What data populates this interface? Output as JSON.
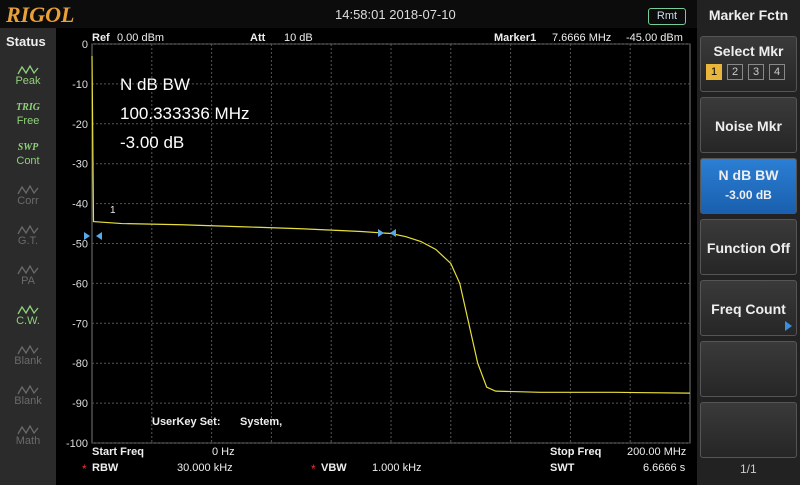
{
  "header": {
    "logo": "RIGOL",
    "datetime": "14:58:01 2018-07-10",
    "remote": "Rmt"
  },
  "status": {
    "title": "Status",
    "items": [
      {
        "label": "Peak",
        "active": true
      },
      {
        "tag": "TRIG",
        "label": "Free",
        "active": true
      },
      {
        "tag": "SWP",
        "label": "Cont",
        "active": true
      },
      {
        "label": "Corr",
        "active": false
      },
      {
        "label": "G.T.",
        "active": false
      },
      {
        "label": "PA",
        "active": false
      },
      {
        "label": "C.W.",
        "active": true
      },
      {
        "label": "Blank",
        "active": false
      },
      {
        "label": "Blank",
        "active": false
      },
      {
        "label": "Math",
        "active": false
      }
    ]
  },
  "info": {
    "ref_label": "Ref",
    "ref_value": "0.00 dBm",
    "att_label": "Att",
    "att_value": "10 dB",
    "marker_label": "Marker1",
    "marker_freq": "7.6666 MHz",
    "marker_level": "-45.00 dBm"
  },
  "overlay": {
    "title": "N dB BW",
    "bandwidth": "100.333336 MHz",
    "level": "-3.00 dB",
    "marker": "1",
    "userkey_label": "UserKey Set:",
    "userkey_value": "System,"
  },
  "footer": {
    "start_label": "Start Freq",
    "start_value": "0 Hz",
    "stop_label": "Stop Freq",
    "stop_value": "200.00 MHz",
    "rbw_flag": "*",
    "rbw_label": "RBW",
    "rbw_value": "30.000 kHz",
    "vbw_flag": "*",
    "vbw_label": "VBW",
    "vbw_value": "1.000 kHz",
    "swt_label": "SWT",
    "swt_value": "6.6666 s"
  },
  "menu": {
    "title": "Marker Fctn",
    "select": {
      "label": "Select Mkr",
      "options": [
        "1",
        "2",
        "3",
        "4"
      ],
      "selected": 0
    },
    "buttons": [
      {
        "label": "Noise Mkr"
      },
      {
        "label": "N dB BW",
        "value": "-3.00 dB",
        "active": true
      },
      {
        "label": "Function Off"
      },
      {
        "label": "Freq Count",
        "more": true
      }
    ],
    "page": "1/1"
  },
  "plot": {
    "type": "line",
    "ylim": [
      -100,
      0
    ],
    "yticks": [
      0,
      -10,
      -20,
      -30,
      -40,
      -50,
      -60,
      -70,
      -80,
      -90,
      -100
    ],
    "xlim": [
      0,
      200
    ],
    "grid": true,
    "color": "#e6df3c",
    "x": [
      0,
      0.5,
      10,
      30,
      50,
      70,
      90,
      100,
      105,
      110,
      115,
      120,
      123,
      126,
      129,
      132,
      135,
      150,
      175,
      200
    ],
    "values": [
      -3,
      -44.5,
      -45,
      -45.3,
      -45.8,
      -46.3,
      -47,
      -47.5,
      -48.3,
      -49.5,
      -51.5,
      -55,
      -60,
      -70,
      -80,
      -86,
      -87,
      -87.3,
      -87.3,
      -87.5
    ]
  }
}
